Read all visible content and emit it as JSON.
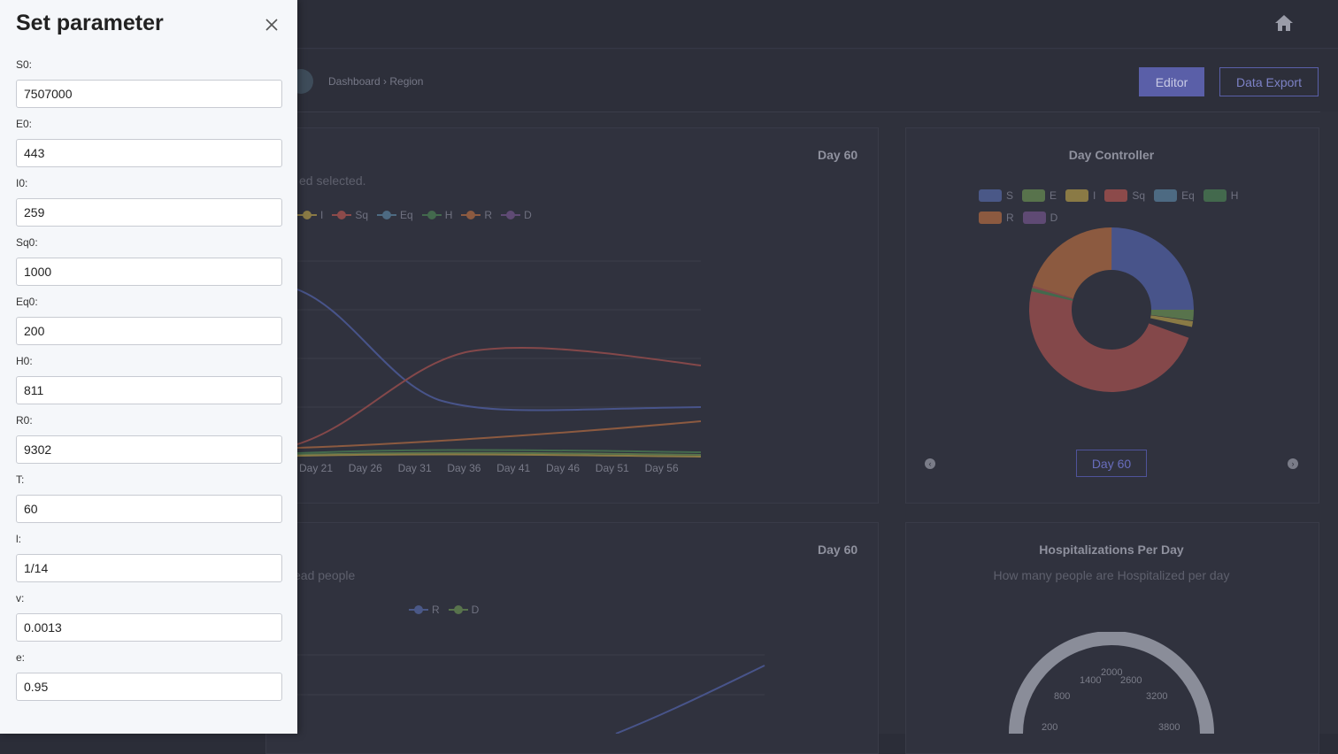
{
  "header": {
    "home_icon": "home-icon"
  },
  "subbar": {
    "breadcrumb": "Dashboard › Region",
    "editor_label": "Editor",
    "export_label": "Data Export"
  },
  "card_main": {
    "title": "Day 60",
    "subtitle": "ed selected.",
    "legend": [
      {
        "label": "I",
        "color": "#8a7a45"
      },
      {
        "label": "Sq",
        "color": "#8c4a4a"
      },
      {
        "label": "Eq",
        "color": "#4d6a82"
      },
      {
        "label": "H",
        "color": "#43694d"
      },
      {
        "label": "R",
        "color": "#8c5a40"
      },
      {
        "label": "D",
        "color": "#5f4a74"
      }
    ],
    "x_ticks": [
      "Day 21",
      "Day 26",
      "Day 31",
      "Day 36",
      "Day 41",
      "Day 46",
      "Day 51",
      "Day 56"
    ]
  },
  "card_day": {
    "title": "Day Controller",
    "legend": [
      {
        "label": "S",
        "color": "#4a5887"
      },
      {
        "label": "E",
        "color": "#58734c"
      },
      {
        "label": "I",
        "color": "#8a7a45"
      },
      {
        "label": "Sq",
        "color": "#8c4a4a"
      },
      {
        "label": "Eq",
        "color": "#4d6a82"
      },
      {
        "label": "H",
        "color": "#43694d"
      },
      {
        "label": "R",
        "color": "#8c5a40"
      },
      {
        "label": "D",
        "color": "#5f4a74"
      }
    ],
    "day_button": "Day 60"
  },
  "card_bottom_left": {
    "title": "Day 60",
    "subtitle": "ead people",
    "legend": [
      {
        "label": "R",
        "color": "#4a5887"
      },
      {
        "label": "D",
        "color": "#58734c"
      }
    ]
  },
  "card_hosp": {
    "title": "Hospitalizations Per Day",
    "subtitle": "How many people are Hospitalized per day",
    "gauge_ticks": [
      "200",
      "800",
      "1400",
      "2000",
      "2600",
      "3200",
      "3800"
    ]
  },
  "drawer": {
    "title": "Set parameter",
    "fields": [
      {
        "label": "S0:",
        "value": "7507000"
      },
      {
        "label": "E0:",
        "value": "443"
      },
      {
        "label": "I0:",
        "value": "259"
      },
      {
        "label": "Sq0:",
        "value": "1000"
      },
      {
        "label": "Eq0:",
        "value": "200"
      },
      {
        "label": "H0:",
        "value": "811"
      },
      {
        "label": "R0:",
        "value": "9302"
      },
      {
        "label": "T:",
        "value": "60"
      },
      {
        "label": "l:",
        "value": "1/14"
      },
      {
        "label": "v:",
        "value": "0.0013"
      },
      {
        "label": "e:",
        "value": "0.95"
      }
    ]
  }
}
